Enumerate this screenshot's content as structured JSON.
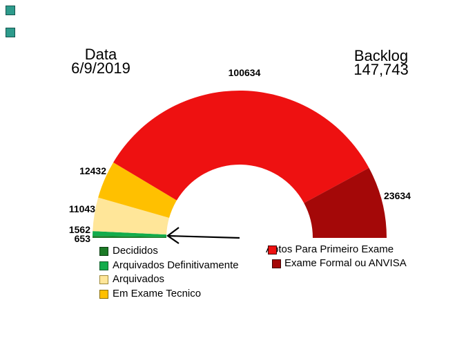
{
  "titles": {
    "date_label": "Data",
    "date_value": "6/9/2019",
    "backlog_label": "Backlog",
    "backlog_value": "147,743"
  },
  "corner_markers": {
    "color": "#2E9B8C",
    "border_color": "#14544C"
  },
  "chart_data": {
    "type": "pie",
    "variant": "half-donut gauge, 180-degree span, flat base, white inner hole",
    "title": "Backlog",
    "displayed_total": "147,743",
    "date": "6/9/2019",
    "legend_position": "bottom",
    "legend_columns": 2,
    "segments": [
      {
        "label": "Decididos",
        "value": 653,
        "color": "#1B7A26",
        "border": "#0C3E12"
      },
      {
        "label": "Arquivados Definitivamente",
        "value": 1562,
        "color": "#12AC4B",
        "border": "#0A5F28"
      },
      {
        "label": "Arquivados",
        "value": 11043,
        "color": "#FFE699",
        "border": "#9D8939"
      },
      {
        "label": "Em Exame Tecnico",
        "value": 12432,
        "color": "#FFC000",
        "border": "#8A6D00"
      },
      {
        "label": "Aptos Para Primeiro Exame",
        "value": 100634,
        "color": "#EE1111",
        "border": "#3D0404"
      },
      {
        "label": "Exame Formal ou ANVISA",
        "value": 23634,
        "color": "#A40808",
        "border": "#3D0000"
      }
    ],
    "annotation_arrow": "black arrow pointing left at the thin green slices at the base of the gauge"
  }
}
